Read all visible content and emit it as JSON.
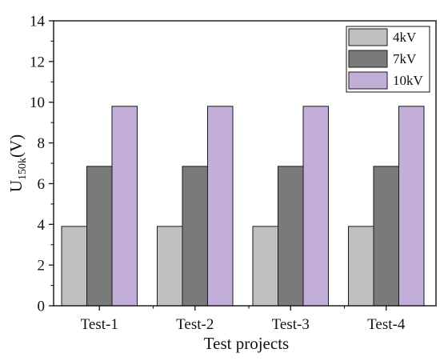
{
  "chart_data": {
    "type": "bar",
    "categories": [
      "Test-1",
      "Test-2",
      "Test-3",
      "Test-4"
    ],
    "series": [
      {
        "name": "4kV",
        "values": [
          3.9,
          3.9,
          3.9,
          3.9
        ],
        "color": "#c0c0c0"
      },
      {
        "name": "7kV",
        "values": [
          6.85,
          6.85,
          6.85,
          6.85
        ],
        "color": "#7a7a7a"
      },
      {
        "name": "10kV",
        "values": [
          9.8,
          9.8,
          9.8,
          9.8
        ],
        "color": "#c2aed8"
      }
    ],
    "xlabel": "Test projects",
    "ylabel": {
      "base": "U",
      "subscript": "150k",
      "unit": "(V)"
    },
    "ylim": [
      0,
      14
    ],
    "yticks": [
      0,
      2,
      4,
      6,
      8,
      10,
      12,
      14
    ],
    "grid": false,
    "legend_position": "top-right"
  }
}
